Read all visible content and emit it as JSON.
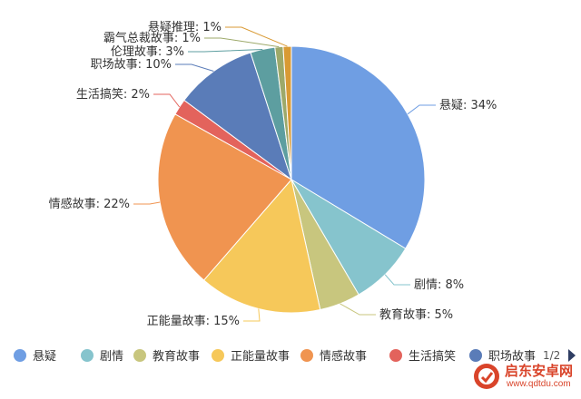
{
  "chart_data": {
    "type": "pie",
    "title": "",
    "slices": [
      {
        "name": "悬疑",
        "value": 34,
        "label": "悬疑: 34%",
        "color": "#6f9ee3"
      },
      {
        "name": "剧情",
        "value": 8,
        "label": "剧情: 8%",
        "color": "#86c4cd"
      },
      {
        "name": "教育故事",
        "value": 5,
        "label": "教育故事: 5%",
        "color": "#c8c67e"
      },
      {
        "name": "正能量故事",
        "value": 15,
        "label": "正能量故事: 15%",
        "color": "#f6c85a"
      },
      {
        "name": "情感故事",
        "value": 22,
        "label": "情感故事: 22%",
        "color": "#f09450"
      },
      {
        "name": "生活搞笑",
        "value": 2,
        "label": "生活搞笑: 2%",
        "color": "#e3635c"
      },
      {
        "name": "职场故事",
        "value": 10,
        "label": "职场故事: 10%",
        "color": "#5a7cb8"
      },
      {
        "name": "伦理故事",
        "value": 3,
        "label": "伦理故事: 3%",
        "color": "#5d9ea0"
      },
      {
        "name": "霸气总裁故事",
        "value": 1,
        "label": "霸气总裁故事: 1%",
        "color": "#9da96a"
      },
      {
        "name": "悬疑推理",
        "value": 1,
        "label": "悬疑推理: 1%",
        "color": "#d99a34"
      }
    ],
    "legend": {
      "placement": "bottom",
      "visible_items": [
        "悬疑",
        "剧情",
        "教育故事",
        "正能量故事",
        "情感故事",
        "生活搞笑",
        "职场故事"
      ],
      "page": "1/2"
    }
  },
  "watermark": {
    "title": "启东安卓网",
    "url": "www.qdtdu.com"
  }
}
